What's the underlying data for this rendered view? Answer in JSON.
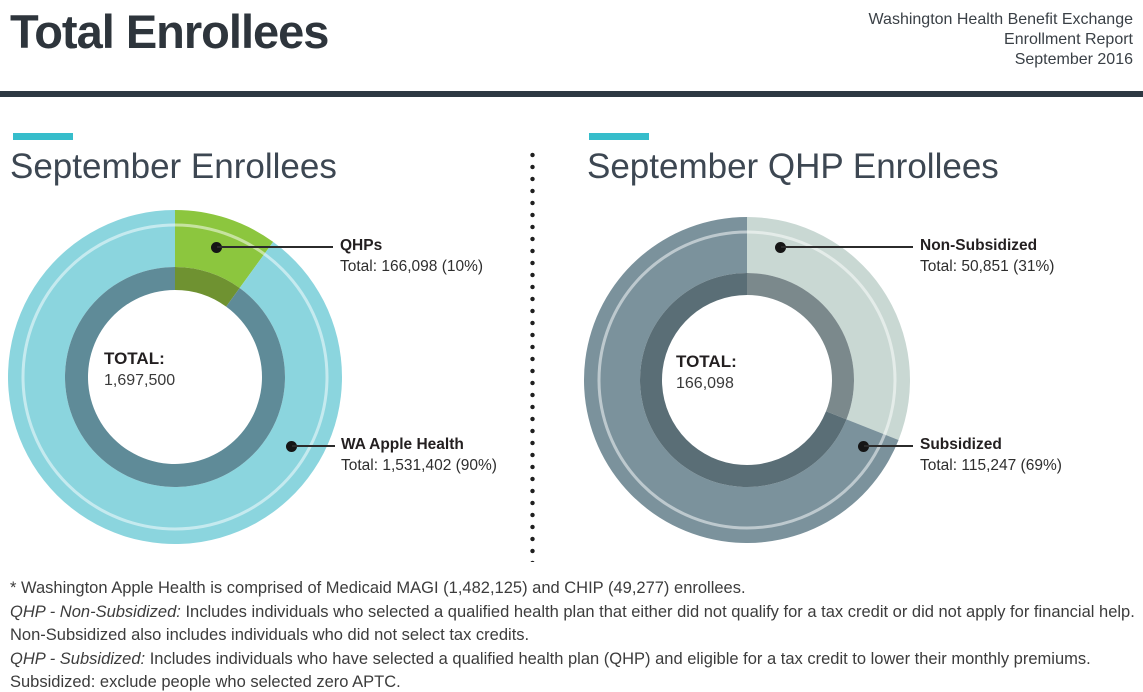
{
  "header": {
    "title": "Total Enrollees",
    "org": "Washington Health Benefit Exchange",
    "report": "Enrollment Report",
    "date": "September 2016"
  },
  "accent_color": "#36bdcb",
  "chart_data": [
    {
      "type": "pie",
      "subtype": "donut",
      "title": "September Enrollees",
      "center_label": "TOTAL:",
      "center_value": "1,697,500",
      "total": 1697500,
      "legend_position": "callouts",
      "slices": [
        {
          "label": "QHPs",
          "value": 166098,
          "pct": 10,
          "color": "#8cc63e",
          "inner_color": "#6f9231",
          "callout_total": "Total: 166,098 (10%)"
        },
        {
          "label": "WA Apple Health",
          "value": 1531402,
          "pct": 90,
          "color": "#8bd5de",
          "inner_color": "#5f8b98",
          "callout_total": "Total: 1,531,402 (90%)"
        }
      ]
    },
    {
      "type": "pie",
      "subtype": "donut",
      "title": "September QHP Enrollees",
      "center_label": "TOTAL:",
      "center_value": "166,098",
      "total": 166098,
      "legend_position": "callouts",
      "slices": [
        {
          "label": "Non-Subsidized",
          "value": 50851,
          "pct": 31,
          "color": "#c9d8d3",
          "inner_color": "#7b898c",
          "callout_total": "Total: 50,851 (31%)"
        },
        {
          "label": "Subsidized",
          "value": 115247,
          "pct": 69,
          "color": "#7b929c",
          "inner_color": "#5a6e76",
          "callout_total": "Total: 115,247 (69%)"
        }
      ]
    }
  ],
  "footnotes": {
    "lines": [
      {
        "prefix": "",
        "text": "* Washington Apple Health is comprised of  Medicaid MAGI (1,482,125) and CHIP (49,277) enrollees."
      },
      {
        "prefix": "QHP - Non-Subsidized:",
        "text": " Includes individuals who selected a qualified health plan that either did not qualify for a tax credit or did not apply for financial help."
      },
      {
        "prefix": "",
        "text": "Non-Subsidized also includes individuals who did not select tax credits."
      },
      {
        "prefix": "QHP - Subsidized:",
        "text": " Includes individuals who have selected a qualified health plan (QHP) and eligible for a tax credit to lower their monthly premiums."
      },
      {
        "prefix": "",
        "text": "Subsidized: exclude people who selected zero APTC."
      }
    ]
  }
}
